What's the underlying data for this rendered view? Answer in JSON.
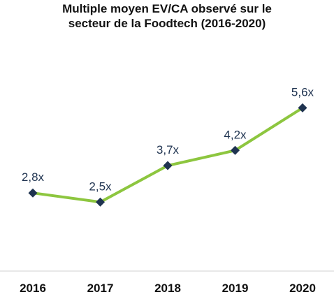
{
  "chart_data": {
    "type": "line",
    "title_lines": [
      "Multiple moyen EV/CA observé sur le",
      "secteur de la Foodtech (2016-2020)"
    ],
    "categories": [
      "2016",
      "2017",
      "2018",
      "2019",
      "2020"
    ],
    "values": [
      2.8,
      2.5,
      3.7,
      4.2,
      5.6
    ],
    "data_labels": [
      "2,8x",
      "2,5x",
      "3,7x",
      "4,2x",
      "5,6x"
    ],
    "xlabel": "",
    "ylabel": "",
    "ylim": [
      0,
      8
    ],
    "grid": false,
    "legend": "none",
    "colors": {
      "line": "#8dc63f",
      "marker": "#1f3350",
      "axis": "#d0d0d0"
    }
  }
}
